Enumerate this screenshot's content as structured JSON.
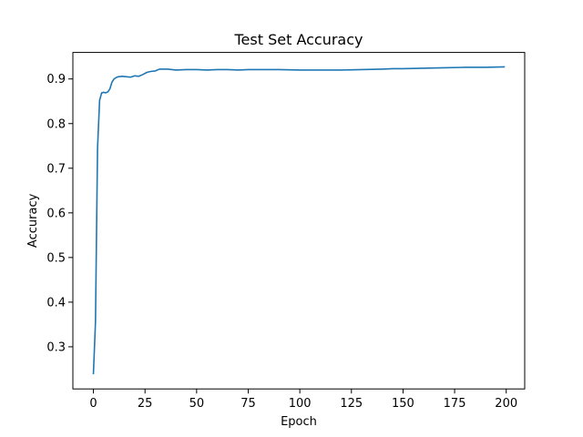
{
  "chart_data": {
    "type": "line",
    "title": "Test Set Accuracy",
    "xlabel": "Epoch",
    "ylabel": "Accuracy",
    "xlim": [
      -9.95,
      208.95
    ],
    "ylim": [
      0.2056,
      0.9594
    ],
    "xticks": [
      0,
      25,
      50,
      75,
      100,
      125,
      150,
      175,
      200
    ],
    "yticks": [
      0.3,
      0.4,
      0.5,
      0.6,
      0.7,
      0.8,
      0.9
    ],
    "grid": false,
    "legend": "none",
    "colors": {
      "line": "#1f77b4",
      "axes": "#000000",
      "background": "#ffffff"
    },
    "series": [
      {
        "x": [
          0,
          1,
          2,
          3,
          4,
          5,
          6,
          7,
          8,
          9,
          10,
          11,
          12,
          14,
          16,
          18,
          20,
          22,
          24,
          26,
          28,
          30,
          32,
          34,
          36,
          38,
          40,
          45,
          50,
          55,
          60,
          65,
          70,
          75,
          80,
          90,
          100,
          105,
          110,
          120,
          130,
          140,
          145,
          150,
          160,
          170,
          180,
          190,
          199
        ],
        "y": [
          0.24,
          0.355,
          0.745,
          0.852,
          0.869,
          0.87,
          0.869,
          0.871,
          0.878,
          0.893,
          0.9,
          0.903,
          0.905,
          0.906,
          0.905,
          0.904,
          0.907,
          0.906,
          0.91,
          0.915,
          0.917,
          0.918,
          0.922,
          0.922,
          0.922,
          0.921,
          0.92,
          0.921,
          0.921,
          0.92,
          0.921,
          0.921,
          0.92,
          0.921,
          0.921,
          0.921,
          0.92,
          0.92,
          0.92,
          0.92,
          0.921,
          0.922,
          0.923,
          0.923,
          0.924,
          0.925,
          0.926,
          0.926,
          0.927
        ]
      }
    ]
  }
}
